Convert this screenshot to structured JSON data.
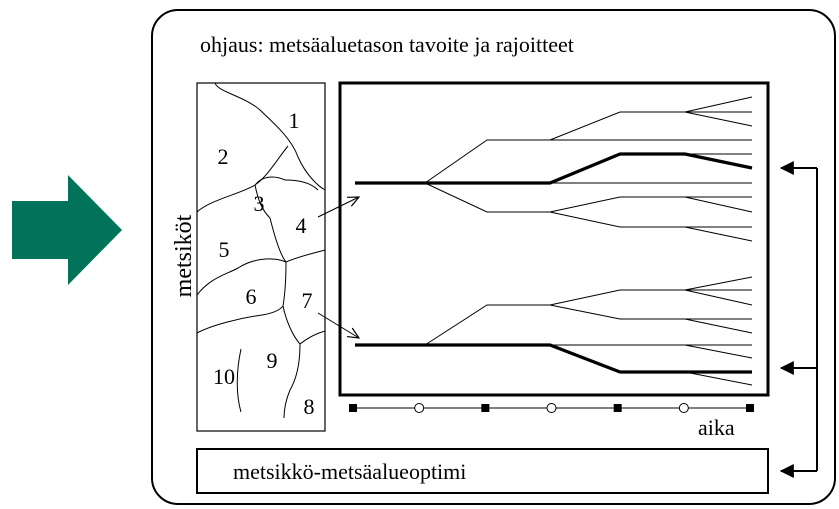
{
  "header": {
    "title": "ohjaus: metsäaluetason tavoite ja rajoitteet"
  },
  "stands_panel": {
    "side_label": "metsiköt",
    "stands": [
      "1",
      "2",
      "3",
      "4",
      "5",
      "6",
      "7",
      "8",
      "9",
      "10"
    ]
  },
  "timeline": {
    "label": "aika",
    "ticks": [
      "square",
      "circle",
      "square",
      "circle",
      "square",
      "circle",
      "square"
    ]
  },
  "footer": {
    "label": "metsikkö-metsäalueoptimi"
  },
  "colors": {
    "input_arrow": "#00735a",
    "ink": "#000000"
  }
}
